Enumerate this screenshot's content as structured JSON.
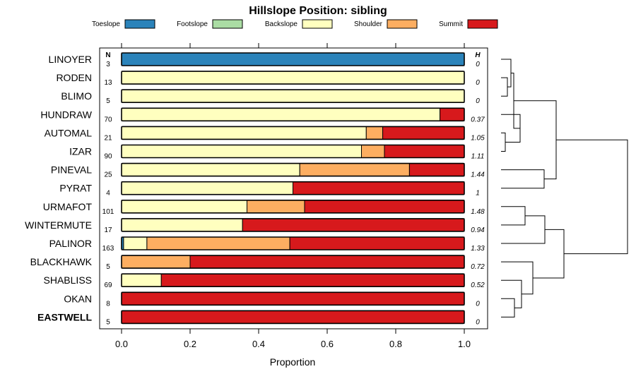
{
  "chart_data": {
    "type": "bar",
    "orientation": "horizontal",
    "stacked": true,
    "title": "Hillslope Position: sibling",
    "xlabel": "Proportion",
    "xlim": [
      0,
      1
    ],
    "xticks": [
      "0.0",
      "0.2",
      "0.4",
      "0.6",
      "0.8",
      "1.0"
    ],
    "n_header": "N",
    "h_header": "H",
    "legend_position": "top",
    "series": [
      {
        "name": "Toeslope",
        "color": "#2b83ba",
        "values": [
          1,
          0,
          0,
          0,
          0,
          0,
          0,
          0,
          0,
          0,
          0.006,
          0,
          0,
          0,
          0
        ]
      },
      {
        "name": "Footslope",
        "color": "#abdda4",
        "values": [
          0,
          0,
          0,
          0,
          0,
          0,
          0,
          0,
          0,
          0,
          0,
          0,
          0,
          0,
          0
        ]
      },
      {
        "name": "Backslope",
        "color": "#ffffbf",
        "values": [
          0,
          1,
          1,
          0.929,
          0.714,
          0.7,
          0.52,
          0.5,
          0.366,
          0.353,
          0.068,
          0,
          0.116,
          0,
          0
        ]
      },
      {
        "name": "Shoulder",
        "color": "#fdae61",
        "values": [
          0,
          0,
          0,
          0,
          0.048,
          0.067,
          0.32,
          0,
          0.168,
          0,
          0.417,
          0.2,
          0,
          0,
          0
        ]
      },
      {
        "name": "Summit",
        "color": "#d7191c",
        "values": [
          0,
          0,
          0,
          0.071,
          0.238,
          0.233,
          0.16,
          0.5,
          0.466,
          0.647,
          0.509,
          0.8,
          0.884,
          1,
          1
        ]
      }
    ],
    "categories": [
      {
        "name": "LINOYER",
        "n": "3",
        "h": "0"
      },
      {
        "name": "RODEN",
        "n": "13",
        "h": "0"
      },
      {
        "name": "BLIMO",
        "n": "5",
        "h": "0"
      },
      {
        "name": "HUNDRAW",
        "n": "70",
        "h": "0.37"
      },
      {
        "name": "AUTOMAL",
        "n": "21",
        "h": "1.05"
      },
      {
        "name": "IZAR",
        "n": "90",
        "h": "1.11"
      },
      {
        "name": "PINEVAL",
        "n": "25",
        "h": "1.44"
      },
      {
        "name": "PYRAT",
        "n": "4",
        "h": "1"
      },
      {
        "name": "URMAFOT",
        "n": "101",
        "h": "1.48"
      },
      {
        "name": "WINTERMUTE",
        "n": "17",
        "h": "0.94"
      },
      {
        "name": "PALINOR",
        "n": "163",
        "h": "1.33"
      },
      {
        "name": "BLACKHAWK",
        "n": "5",
        "h": "0.72"
      },
      {
        "name": "SHABLISS",
        "n": "69",
        "h": "0.52"
      },
      {
        "name": "OKAN",
        "n": "8",
        "h": "0"
      },
      {
        "name": "EASTWELL",
        "n": "5",
        "h": "0",
        "bold": true
      }
    ]
  }
}
